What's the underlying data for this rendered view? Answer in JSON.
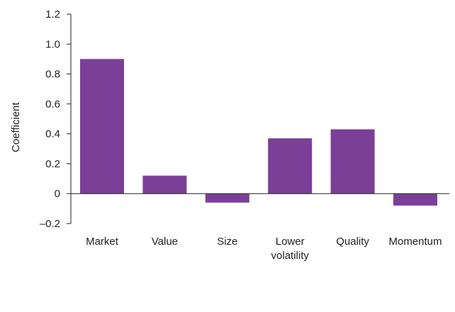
{
  "chart_data": {
    "type": "bar",
    "title": "",
    "xlabel": "",
    "ylabel": "Coefficient",
    "categories": [
      "Market",
      "Value",
      "Size",
      "Lower volatility",
      "Quality",
      "Momentum"
    ],
    "category_lines": [
      [
        "Market"
      ],
      [
        "Value"
      ],
      [
        "Size"
      ],
      [
        "Lower",
        "volatility"
      ],
      [
        "Quality"
      ],
      [
        "Momentum"
      ]
    ],
    "values": [
      0.9,
      0.12,
      -0.06,
      0.37,
      0.43,
      -0.08
    ],
    "ylim": [
      -0.2,
      1.2
    ],
    "yticks": [
      -0.2,
      0,
      0.2,
      0.4,
      0.6,
      0.8,
      1.0,
      1.2
    ],
    "ytick_labels": [
      "–0.2",
      "0",
      "0.2",
      "0.4",
      "0.6",
      "0.8",
      "1.0",
      "1.2"
    ],
    "grid": false,
    "legend": "none",
    "bar_color": "#7B3F98"
  }
}
